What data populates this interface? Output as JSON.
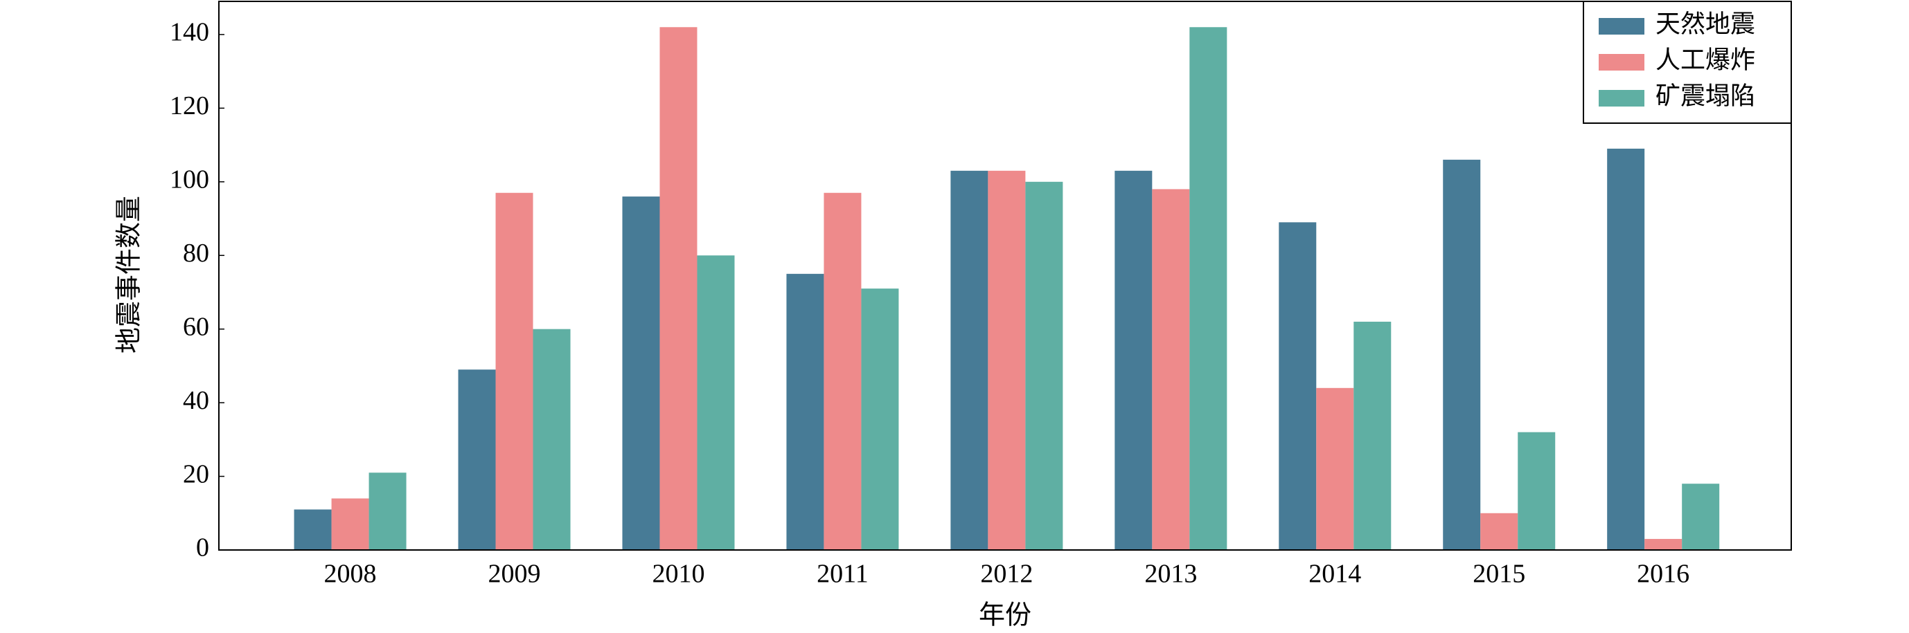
{
  "chart_data": {
    "type": "bar",
    "xlabel": "年份",
    "ylabel": "地震事件数量",
    "categories": [
      "2008",
      "2009",
      "2010",
      "2011",
      "2012",
      "2013",
      "2014",
      "2015",
      "2016"
    ],
    "series": [
      {
        "name": "天然地震",
        "color": "#477b96",
        "values": [
          11,
          49,
          96,
          75,
          103,
          103,
          89,
          106,
          109
        ]
      },
      {
        "name": "人工爆炸",
        "color": "#ee8a8b",
        "values": [
          14,
          97,
          142,
          97,
          103,
          98,
          44,
          10,
          3
        ]
      },
      {
        "name": "矿震塌陷",
        "color": "#5fafa3",
        "values": [
          21,
          60,
          80,
          71,
          100,
          142,
          62,
          32,
          18
        ]
      }
    ],
    "ylim": [
      0,
      149
    ],
    "yticks": [
      0,
      20,
      40,
      60,
      80,
      100,
      120,
      140
    ],
    "legend": "upper right"
  }
}
